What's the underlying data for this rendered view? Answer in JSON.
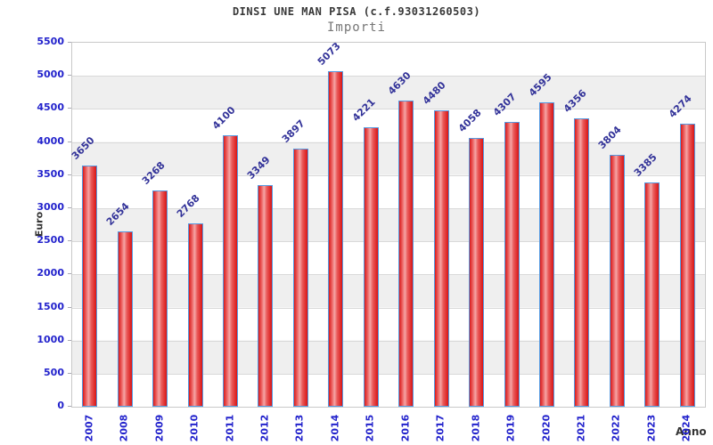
{
  "chart_data": {
    "type": "bar",
    "title": "DINSI UNE MAN PISA (c.f.93031260503)",
    "subtitle": "Importi",
    "xlabel": "Anno",
    "ylabel": "Euro",
    "categories": [
      "2007",
      "2008",
      "2009",
      "2010",
      "2011",
      "2012",
      "2013",
      "2014",
      "2015",
      "2016",
      "2017",
      "2018",
      "2019",
      "2020",
      "2021",
      "2022",
      "2023",
      "2024"
    ],
    "values": [
      3650,
      2654,
      3268,
      2768,
      4100,
      3349,
      3897,
      5073,
      4221,
      4630,
      4480,
      4058,
      4307,
      4595,
      4356,
      3804,
      3385,
      4274
    ],
    "ylim": [
      0,
      5500
    ],
    "ytick_step": 500,
    "yticks": [
      0,
      500,
      1000,
      1500,
      2000,
      2500,
      3000,
      3500,
      4000,
      4500,
      5000,
      5500
    ],
    "grid": true,
    "legend": "none",
    "colors": {
      "bar_fill": "#e02020",
      "bar_fill_highlight": "#f5a5a5",
      "bar_border": "#5599e0",
      "axis_tick_text": "#2222cc",
      "value_label_text": "#333399",
      "band_gray": "#efefef",
      "gridline": "#d9d9d9",
      "title_text": "#383838",
      "subtitle_text": "#767676",
      "axis_title_text": "#333333"
    }
  }
}
